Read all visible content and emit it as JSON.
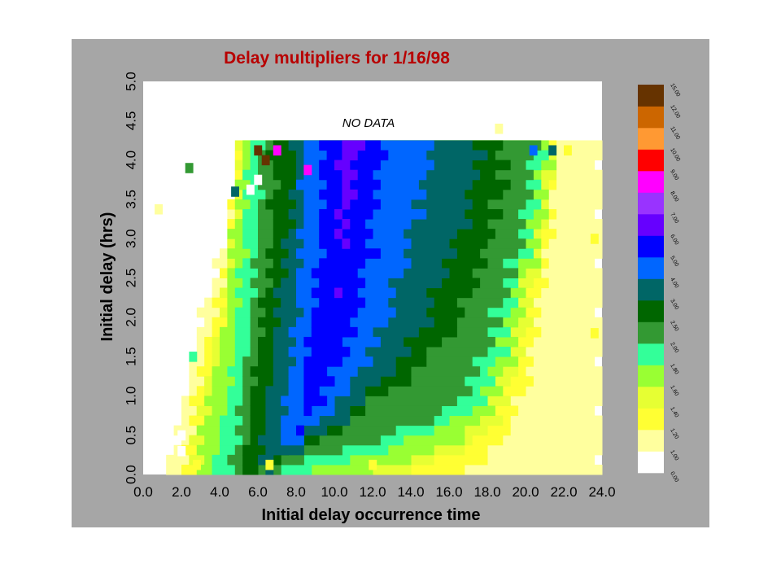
{
  "chart_data": {
    "type": "heatmap",
    "title": "Delay multipliers for 1/16/98",
    "xlabel": "Initial delay occurrence time",
    "ylabel": "Initial delay (hrs)",
    "xlim": [
      0,
      24
    ],
    "ylim": [
      0,
      5
    ],
    "x_ticks": [
      "0.0",
      "2.0",
      "4.0",
      "6.0",
      "8.0",
      "10.0",
      "12.0",
      "14.0",
      "16.0",
      "18.0",
      "20.0",
      "22.0",
      "24.0"
    ],
    "y_ticks": [
      "0.0",
      "0.5",
      "1.0",
      "1.5",
      "2.0",
      "2.5",
      "3.0",
      "3.5",
      "4.0",
      "4.5",
      "5.0"
    ],
    "annotation": "NO DATA",
    "no_data_above_hrs": 4.25,
    "cell_size": {
      "x_hrs": 0.4,
      "y_hrs": 0.125
    },
    "grid": false,
    "legend_position": "right colorbar",
    "colorbar": {
      "labels": [
        "0.00",
        "1.00",
        "1.20",
        "1.40",
        "1.60",
        "1.80",
        "2.00",
        "2.50",
        "3.00",
        "4.00",
        "5.00",
        "6.00",
        "7.00",
        "8.00",
        "9.00",
        "10.00",
        "11.00",
        "12.00",
        "15.00"
      ],
      "colors": [
        "#ffffff",
        "#ffff9e",
        "#ffff33",
        "#e6ff33",
        "#99ff33",
        "#33ff99",
        "#339933",
        "#006600",
        "#006666",
        "#0066ff",
        "#0000ff",
        "#6600ff",
        "#9933ff",
        "#ff00ff",
        "#ff0000",
        "#ff9933",
        "#cc6600",
        "#663300"
      ]
    },
    "bands": [
      {
        "name": "band-1.00",
        "color_index": 1,
        "boundary_x": [
          1.2,
          1.6,
          2.0,
          2.3,
          2.6,
          3.0,
          3.4,
          4.0,
          4.4,
          4.6,
          4.9,
          5.0
        ],
        "right_x": [
          24,
          24,
          24,
          24,
          24,
          24,
          24,
          24,
          24,
          24,
          24,
          24
        ]
      },
      {
        "name": "band-1.20",
        "color_index": 2,
        "boundary_x": [
          2.0,
          2.3,
          2.6,
          2.9,
          3.2,
          3.6,
          4.0,
          4.4,
          4.6,
          4.8,
          5.0,
          5.1
        ],
        "right_x": [
          16.8,
          18.6,
          19.4,
          20.0,
          20.3,
          20.5,
          20.8,
          21.0,
          21.2,
          21.3,
          21.4,
          21.5
        ]
      },
      {
        "name": "band-1.40",
        "color_index": 3,
        "boundary_x": [
          2.4,
          2.7,
          3.0,
          3.3,
          3.6,
          4.0,
          4.3,
          4.5,
          4.7,
          4.9,
          5.0,
          5.1
        ],
        "right_x": [
          13.0,
          17.6,
          18.6,
          19.2,
          19.7,
          20.0,
          20.3,
          20.6,
          20.8,
          21.0,
          21.2,
          21.3
        ]
      },
      {
        "name": "band-1.60",
        "color_index": 4,
        "boundary_x": [
          2.8,
          3.1,
          3.3,
          3.6,
          3.9,
          4.2,
          4.4,
          4.6,
          4.8,
          5.0,
          5.1,
          5.2
        ],
        "right_x": [
          11.0,
          16.2,
          18.0,
          18.8,
          19.3,
          19.6,
          20.0,
          20.3,
          20.6,
          20.8,
          21.0,
          21.2
        ]
      },
      {
        "name": "band-1.80",
        "color_index": 5,
        "boundary_x": [
          3.6,
          3.9,
          4.2,
          4.5,
          4.7,
          4.9,
          5.1,
          5.2,
          5.3,
          5.4,
          5.5,
          5.6
        ],
        "right_x": [
          8.5,
          13.5,
          17.2,
          18.2,
          18.6,
          19.0,
          19.4,
          19.8,
          20.1,
          20.3,
          20.6,
          20.8
        ]
      },
      {
        "name": "band-2.00",
        "color_index": 6,
        "boundary_x": [
          4.6,
          4.8,
          5.0,
          5.2,
          5.4,
          5.6,
          5.8,
          5.9,
          6.0,
          6.1,
          6.1,
          6.1
        ],
        "right_x": [
          6.0,
          11.5,
          15.8,
          17.0,
          17.8,
          18.4,
          18.9,
          19.4,
          19.8,
          20.0,
          20.2,
          20.4
        ]
      },
      {
        "name": "band-2.50",
        "color_index": 7,
        "boundary_x": [
          5.2,
          5.4,
          5.6,
          5.8,
          6.0,
          6.2,
          6.4,
          6.6,
          6.7,
          6.8,
          6.8,
          6.8
        ],
        "right_x": [
          5.6,
          8.8,
          11.0,
          13.5,
          15.2,
          16.4,
          17.2,
          17.8,
          18.2,
          18.6,
          18.8,
          19.0
        ]
      },
      {
        "name": "band-3.00",
        "color_index": 8,
        "boundary_x": [
          6.0,
          6.2,
          6.4,
          6.6,
          6.8,
          7.0,
          7.2,
          7.4,
          7.6,
          7.8,
          7.9,
          8.0
        ],
        "right_x": [
          5.8,
          8.6,
          10.8,
          12.4,
          13.6,
          14.6,
          15.4,
          16.0,
          16.6,
          17.0,
          17.4,
          17.8
        ]
      },
      {
        "name": "band-4.00",
        "color_index": 9,
        "boundary_x": [
          7.0,
          7.2,
          7.4,
          7.6,
          7.8,
          8.0,
          8.1,
          8.2,
          8.3,
          8.3,
          8.3,
          8.3
        ],
        "right_x": [
          5.8,
          8.0,
          9.6,
          11.0,
          11.8,
          12.6,
          13.2,
          13.6,
          14.0,
          14.4,
          14.8,
          15.0
        ]
      },
      {
        "name": "band-5.00",
        "color_index": 10,
        "boundary_x": [
          7.8,
          8.0,
          8.2,
          8.4,
          8.6,
          8.8,
          9.0,
          9.2,
          9.3,
          9.3,
          9.3,
          9.3
        ],
        "right_x": [
          5.8,
          7.6,
          8.8,
          9.8,
          10.4,
          11.0,
          11.4,
          11.8,
          12.0,
          12.2,
          12.4,
          12.6
        ]
      },
      {
        "name": "band-6.00",
        "color_index": 11,
        "boundary_x": [
          8.8,
          9.0,
          9.2,
          9.4,
          9.6,
          9.8,
          10.0,
          10.2,
          10.3,
          10.3,
          10.3,
          10.3
        ],
        "right_x": [
          5.8,
          7.2,
          8.0,
          8.6,
          9.2,
          9.6,
          10.0,
          10.4,
          10.6,
          10.8,
          11.0,
          11.2
        ]
      },
      {
        "name": "band-7.00",
        "color_index": 12,
        "boundary_x": [
          9.8,
          10.0,
          10.2,
          10.4,
          10.6,
          10.8,
          11.0,
          11.2,
          11.3,
          11.3,
          11.3,
          11.3
        ],
        "right_x": [
          5.8,
          6.8,
          7.4,
          7.8,
          8.0,
          8.2,
          8.4,
          8.8,
          9.0,
          9.2,
          9.4,
          9.6
        ]
      }
    ],
    "highlights": [
      {
        "x": 6.0,
        "y": 4.125,
        "color": "#663300"
      },
      {
        "x": 6.4,
        "y": 4.0,
        "color": "#663300"
      },
      {
        "x": 6.0,
        "y": 3.75,
        "color": "#ffffff"
      },
      {
        "x": 5.6,
        "y": 3.625,
        "color": "#ffffff"
      },
      {
        "x": 7.0,
        "y": 4.125,
        "color": "#ff00ff"
      },
      {
        "x": 8.6,
        "y": 3.875,
        "color": "#ff00ff"
      },
      {
        "x": 4.8,
        "y": 3.6,
        "color": "#006666"
      },
      {
        "x": 2.4,
        "y": 3.9,
        "color": "#339933"
      },
      {
        "x": 0.8,
        "y": 3.375,
        "color": "#ffff9e"
      },
      {
        "x": 18.6,
        "y": 4.4,
        "color": "#ffff9e"
      },
      {
        "x": 20.4,
        "y": 4.125,
        "color": "#0066ff"
      },
      {
        "x": 21.4,
        "y": 4.125,
        "color": "#006666"
      },
      {
        "x": 22.2,
        "y": 4.125,
        "color": "#ffff33"
      },
      {
        "x": 23.6,
        "y": 3.0,
        "color": "#ffff33"
      },
      {
        "x": 23.6,
        "y": 1.8,
        "color": "#ffff33"
      },
      {
        "x": 2.0,
        "y": 0.5,
        "color": "#ffffff"
      },
      {
        "x": 2.0,
        "y": 0.3,
        "color": "#ffffff"
      },
      {
        "x": 2.6,
        "y": 1.5,
        "color": "#33ff99"
      },
      {
        "x": 2.8,
        "y": 0.125,
        "color": "#ffff33"
      },
      {
        "x": 12.0,
        "y": 0.125,
        "color": "#ffff33"
      },
      {
        "x": 6.6,
        "y": 0.125,
        "color": "#ffff33"
      }
    ]
  }
}
